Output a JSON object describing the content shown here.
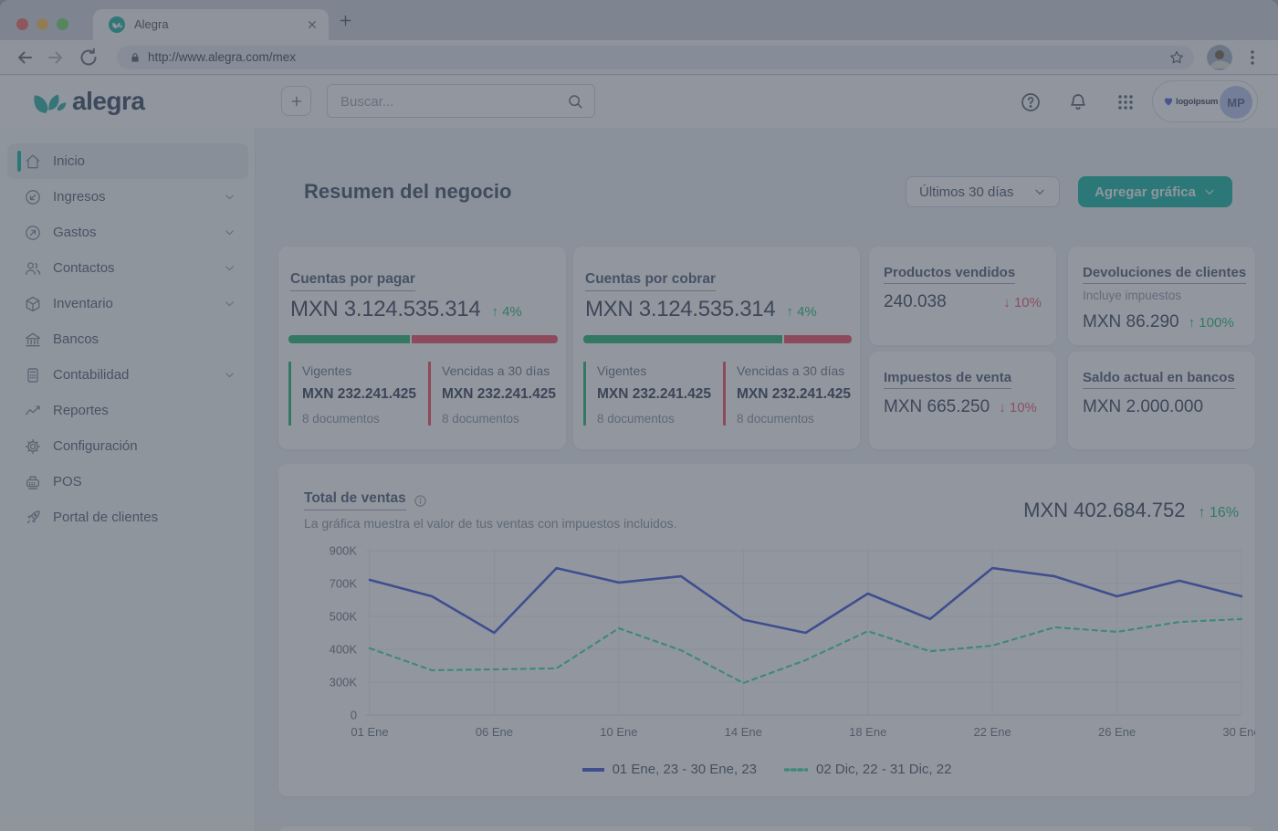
{
  "browser": {
    "tab_title": "Alegra",
    "url": "http://www.alegra.com/mex"
  },
  "header": {
    "brand": "alegra",
    "search_placeholder": "Buscar...",
    "account": {
      "logo_text": "logoipsum",
      "avatar_initials": "MP"
    }
  },
  "sidebar": {
    "items": [
      {
        "label": "Inicio",
        "active": true
      },
      {
        "label": "Ingresos",
        "expandable": true
      },
      {
        "label": "Gastos",
        "expandable": true
      },
      {
        "label": "Contactos",
        "expandable": true
      },
      {
        "label": "Inventario",
        "expandable": true
      },
      {
        "label": "Bancos"
      },
      {
        "label": "Contabilidad",
        "expandable": true
      },
      {
        "label": "Reportes"
      },
      {
        "label": "Configuración"
      },
      {
        "label": "POS"
      },
      {
        "label": "Portal de clientes"
      }
    ]
  },
  "main": {
    "title": "Resumen del negocio",
    "period_button": "Últimos 30 días",
    "add_chart_button": "Agregar gráfica"
  },
  "cards": {
    "payable": {
      "title": "Cuentas por pagar",
      "amount": "MXN 3.124.535.314",
      "arrow": "↑",
      "delta": "4%",
      "direction": "up",
      "green_pct": 45,
      "current": {
        "label": "Vigentes",
        "amount": "MXN 232.241.425",
        "docs": "8 documentos"
      },
      "overdue": {
        "label": "Vencidas a 30 días",
        "amount": "MXN 232.241.425",
        "docs": "8 documentos"
      }
    },
    "receivable": {
      "title": "Cuentas por cobrar",
      "amount": "MXN 3.124.535.314",
      "arrow": "↑",
      "delta": "4%",
      "direction": "up",
      "green_pct": 74,
      "current": {
        "label": "Vigentes",
        "amount": "MXN 232.241.425",
        "docs": "8 documentos"
      },
      "overdue": {
        "label": "Vencidas a 30 días",
        "amount": "MXN 232.241.425",
        "docs": "8 documentos"
      }
    },
    "products_sold": {
      "title": "Productos vendidos",
      "value": "240.038",
      "arrow": "↓",
      "delta": "10%",
      "direction": "down"
    },
    "customer_returns": {
      "title": "Devoluciones de clientes",
      "note": "Incluye impuestos",
      "value": "MXN 86.290",
      "arrow": "↑",
      "delta": "100%",
      "direction": "up"
    },
    "sales_tax": {
      "title": "Impuestos de venta",
      "value": "MXN 665.250",
      "arrow": "↓",
      "delta": "10%",
      "direction": "down"
    },
    "bank_balance": {
      "title": "Saldo actual en bancos",
      "value": "MXN 2.000.000"
    }
  },
  "chart": {
    "title": "Total de ventas",
    "subtitle": "La gráfica muestra el valor de tus ventas con impuestos incluidos.",
    "total": "MXN 402.684.752",
    "arrow": "↑",
    "delta": "16%",
    "direction": "up"
  },
  "chart_data": {
    "type": "line",
    "unit": "thousands of MXN",
    "y_ticks": [
      0,
      300,
      400,
      500,
      700,
      900
    ],
    "y_tick_labels": [
      "0",
      "300K",
      "400K",
      "500K",
      "700K",
      "900K"
    ],
    "x_labels": [
      "01 Ene",
      "06 Ene",
      "10 Ene",
      "14 Ene",
      "18 Ene",
      "22 Ene",
      "26 Ene",
      "30 Ene"
    ],
    "grid": true,
    "legend_position": "bottom",
    "series": [
      {
        "name": "01 Ene, 23 - 30 Ene, 23",
        "style": "solid",
        "color": "#3149D6",
        "values": [
          722,
          622,
          450,
          794,
          706,
          744,
          490,
          450,
          639,
          492,
          794,
          744,
          622,
          717,
          622
        ]
      },
      {
        "name": "02 Dic, 22 - 31 Dic, 22",
        "style": "dashed",
        "color": "#34D9A4",
        "values": [
          403,
          336,
          339,
          342,
          464,
          397,
          292,
          367,
          455,
          394,
          411,
          467,
          453,
          483,
          492
        ]
      }
    ]
  },
  "colors": {
    "brand_teal": "#00B19D",
    "success_green": "#13B56C",
    "danger_red": "#EA4C6B",
    "bar_green": "#16B26C",
    "bar_red": "#EF4058",
    "line_blue": "#3149D6",
    "line_green": "#34D9A4",
    "dim_overlay": "rgba(73,81,95,0.60)"
  }
}
